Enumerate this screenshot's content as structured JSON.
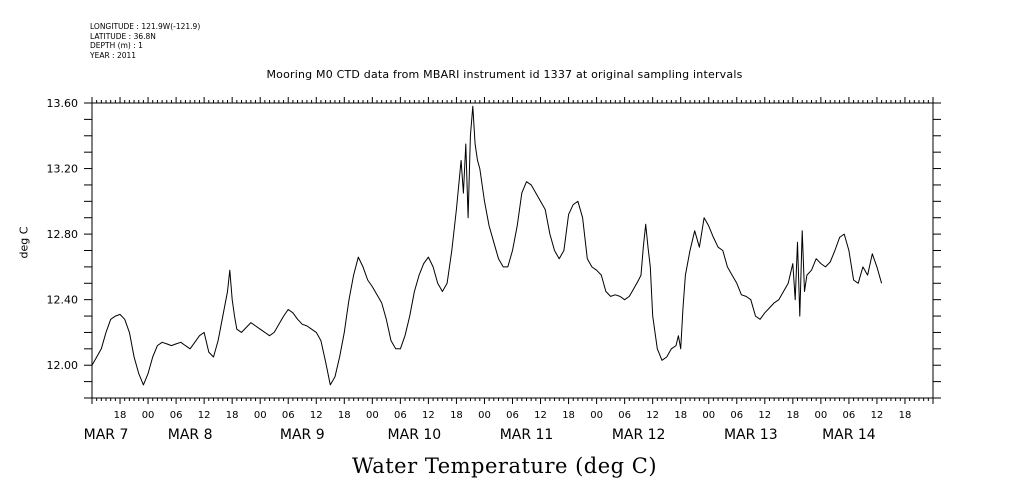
{
  "metadata": {
    "longitude": "LONGITUDE : 121.9W(-121.9)",
    "latitude": "LATITUDE : 36.8N",
    "depth": "DEPTH (m) : 1",
    "year": "YEAR : 2011"
  },
  "chart_data": {
    "type": "line",
    "title": "Mooring M0 CTD data from MBARI instrument id 1337 at original sampling intervals",
    "xlabel": "Water Temperature (deg C)",
    "ylabel": "deg C",
    "x_unit": "hours since 2011-03-06 12:00",
    "xlim": [
      0,
      180
    ],
    "ylim": [
      11.8,
      13.6
    ],
    "y_ticks": [
      12.0,
      12.4,
      12.8,
      13.2,
      13.6
    ],
    "y_tick_labels": [
      "12.00",
      "12.40",
      "12.80",
      "13.20",
      "13.60"
    ],
    "x_hour_ticks": [
      {
        "x": 6,
        "label": "18"
      },
      {
        "x": 12,
        "label": "00"
      },
      {
        "x": 18,
        "label": "06"
      },
      {
        "x": 24,
        "label": "12"
      },
      {
        "x": 30,
        "label": "18"
      },
      {
        "x": 36,
        "label": "00"
      },
      {
        "x": 42,
        "label": "06"
      },
      {
        "x": 48,
        "label": "12"
      },
      {
        "x": 54,
        "label": "18"
      },
      {
        "x": 60,
        "label": "00"
      },
      {
        "x": 66,
        "label": "06"
      },
      {
        "x": 72,
        "label": "12"
      },
      {
        "x": 78,
        "label": "18"
      },
      {
        "x": 84,
        "label": "00"
      },
      {
        "x": 90,
        "label": "06"
      },
      {
        "x": 96,
        "label": "12"
      },
      {
        "x": 102,
        "label": "18"
      },
      {
        "x": 108,
        "label": "00"
      },
      {
        "x": 114,
        "label": "06"
      },
      {
        "x": 120,
        "label": "12"
      },
      {
        "x": 126,
        "label": "18"
      },
      {
        "x": 132,
        "label": "00"
      },
      {
        "x": 138,
        "label": "06"
      },
      {
        "x": 144,
        "label": "12"
      },
      {
        "x": 150,
        "label": "18"
      },
      {
        "x": 156,
        "label": "00"
      },
      {
        "x": 162,
        "label": "06"
      },
      {
        "x": 168,
        "label": "12"
      },
      {
        "x": 174,
        "label": "18"
      }
    ],
    "x_day_labels": [
      {
        "x": 3,
        "label": "MAR  7"
      },
      {
        "x": 21,
        "label": "MAR  8"
      },
      {
        "x": 45,
        "label": "MAR  9"
      },
      {
        "x": 69,
        "label": "MAR 10"
      },
      {
        "x": 93,
        "label": "MAR 11"
      },
      {
        "x": 117,
        "label": "MAR 12"
      },
      {
        "x": 141,
        "label": "MAR 13"
      },
      {
        "x": 162,
        "label": "MAR 14"
      }
    ],
    "series": [
      {
        "x": [
          0,
          1,
          2,
          3,
          4,
          5,
          6,
          7,
          8,
          9,
          10,
          11,
          12,
          13,
          14,
          15,
          16,
          17,
          18,
          19,
          20,
          21,
          22,
          23,
          24,
          25,
          26,
          27,
          28,
          29,
          29.5,
          30,
          30.5,
          31,
          32,
          33,
          34,
          35,
          36,
          37,
          38,
          39,
          40,
          41,
          42,
          43,
          44,
          45,
          46,
          47,
          48,
          49,
          50,
          51,
          52,
          53,
          54,
          54.5,
          55,
          56,
          57,
          58,
          59,
          60,
          61,
          62,
          63,
          64,
          65,
          66,
          67,
          68,
          69,
          70,
          71,
          72,
          73,
          74,
          75,
          76,
          77,
          78,
          79,
          79.5,
          80,
          80.5,
          81,
          81.5,
          82,
          82.5,
          83,
          84,
          85,
          86,
          87,
          88,
          89,
          90,
          91,
          92,
          93,
          94,
          95,
          96,
          97,
          98,
          99,
          100,
          101,
          102,
          103,
          104,
          105,
          106,
          107,
          108,
          109,
          110,
          111,
          112,
          113,
          114,
          115,
          116,
          117,
          117.5,
          118,
          118.5,
          119,
          119.5,
          120,
          121,
          122,
          123,
          124,
          125,
          125.5,
          126,
          126.5,
          127,
          128,
          129,
          130,
          131,
          132,
          133,
          134,
          135,
          136,
          137,
          138,
          139,
          140,
          141,
          142,
          143,
          144,
          145,
          146,
          147,
          148,
          149,
          150,
          150.5,
          151,
          151.5,
          152,
          152.5,
          153,
          154,
          155,
          156,
          157,
          158,
          159,
          160,
          161,
          162,
          163,
          164,
          165,
          166,
          167,
          168,
          169
        ],
        "values": [
          12.0,
          12.05,
          12.1,
          12.2,
          12.28,
          12.3,
          12.31,
          12.28,
          12.2,
          12.05,
          11.95,
          11.88,
          11.95,
          12.05,
          12.12,
          12.14,
          12.13,
          12.12,
          12.13,
          12.14,
          12.12,
          12.1,
          12.14,
          12.18,
          12.2,
          12.08,
          12.05,
          12.15,
          12.3,
          12.45,
          12.58,
          12.4,
          12.3,
          12.22,
          12.2,
          12.23,
          12.26,
          12.24,
          12.22,
          12.2,
          12.18,
          12.2,
          12.25,
          12.3,
          12.34,
          12.32,
          12.28,
          12.25,
          12.24,
          12.22,
          12.2,
          12.15,
          12.02,
          11.88,
          11.93,
          12.05,
          12.2,
          12.3,
          12.4,
          12.55,
          12.66,
          12.6,
          12.52,
          12.48,
          12.43,
          12.38,
          12.28,
          12.15,
          12.1,
          12.1,
          12.18,
          12.3,
          12.45,
          12.55,
          12.62,
          12.66,
          12.6,
          12.5,
          12.45,
          12.5,
          12.7,
          12.95,
          13.25,
          13.05,
          13.35,
          12.9,
          13.4,
          13.58,
          13.35,
          13.25,
          13.2,
          13.0,
          12.85,
          12.75,
          12.65,
          12.6,
          12.6,
          12.7,
          12.85,
          13.05,
          13.12,
          13.1,
          13.05,
          13.0,
          12.95,
          12.8,
          12.7,
          12.65,
          12.7,
          12.92,
          12.98,
          13.0,
          12.9,
          12.65,
          12.6,
          12.58,
          12.55,
          12.45,
          12.42,
          12.43,
          12.42,
          12.4,
          12.42,
          12.47,
          12.52,
          12.55,
          12.72,
          12.86,
          12.72,
          12.6,
          12.3,
          12.1,
          12.03,
          12.05,
          12.1,
          12.12,
          12.18,
          12.1,
          12.35,
          12.55,
          12.7,
          12.82,
          12.72,
          12.9,
          12.85,
          12.78,
          12.72,
          12.7,
          12.6,
          12.55,
          12.5,
          12.43,
          12.42,
          12.4,
          12.3,
          12.28,
          12.32,
          12.35,
          12.38,
          12.4,
          12.45,
          12.5,
          12.62,
          12.4,
          12.75,
          12.3,
          12.82,
          12.45,
          12.55,
          12.58,
          12.65,
          12.62,
          12.6,
          12.63,
          12.7,
          12.78,
          12.8,
          12.7,
          12.52,
          12.5,
          12.6,
          12.55,
          12.68,
          12.6,
          12.5
        ]
      }
    ]
  }
}
